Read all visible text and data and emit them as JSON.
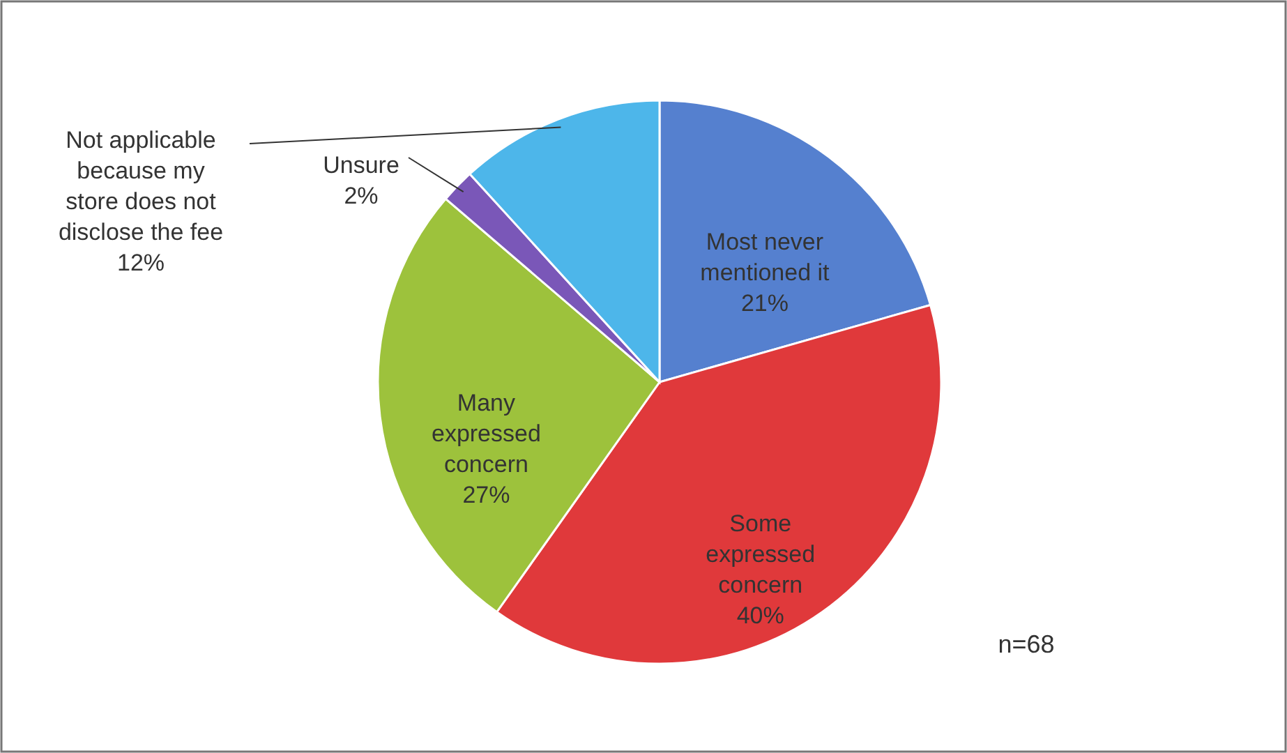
{
  "chart_data": {
    "type": "pie",
    "categories": [
      "Most never mentioned it",
      "Some expressed concern",
      "Many expressed concern",
      "Unsure",
      "Not applicable because my store does not disclose the fee"
    ],
    "values": [
      21,
      40,
      27,
      2,
      12
    ],
    "value_labels": [
      "21%",
      "40%",
      "27%",
      "2%",
      "12%"
    ],
    "colors": [
      "#5580cf",
      "#e0393b",
      "#9dc23c",
      "#7a57b8",
      "#4db6ea"
    ],
    "annotations": [
      "n=68"
    ]
  }
}
